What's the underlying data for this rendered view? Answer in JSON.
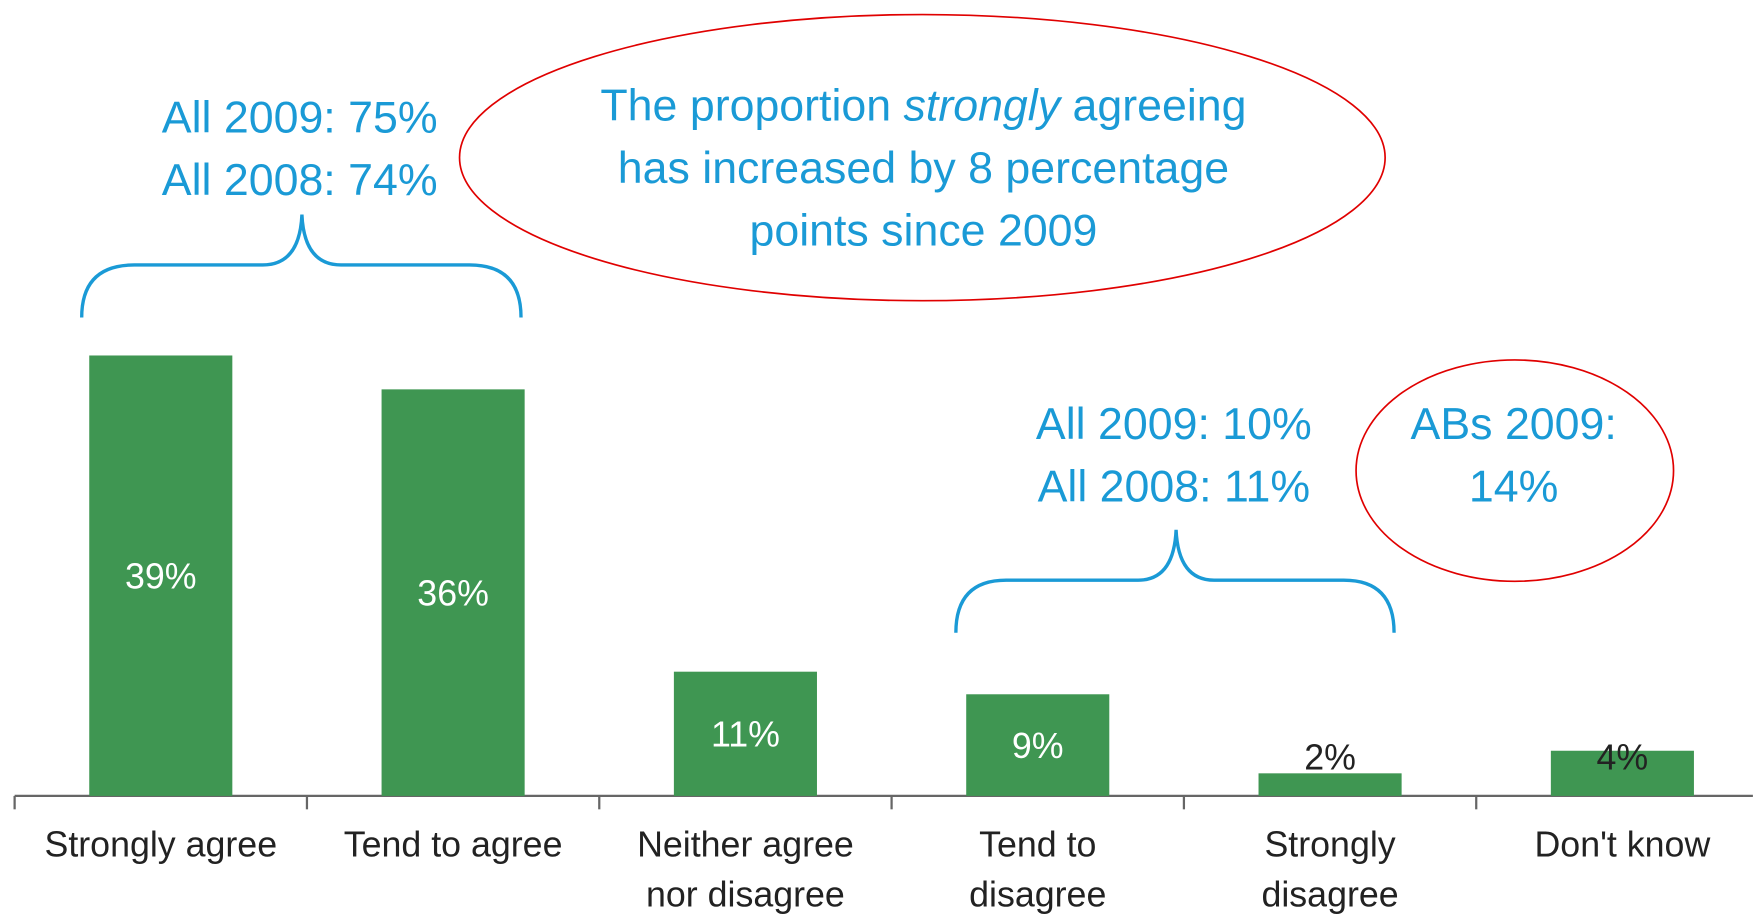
{
  "chart_data": {
    "type": "bar",
    "categories": [
      "Strongly agree",
      "Tend to agree",
      "Neither agree\nnor disagree",
      "Tend to\ndisagree",
      "Strongly\ndisagree",
      "Don't know"
    ],
    "values": [
      39,
      36,
      11,
      9,
      2,
      4
    ],
    "value_labels": [
      "39%",
      "36%",
      "11%",
      "9%",
      "2%",
      "4%"
    ],
    "color": "#3f9652",
    "annotations": {
      "agree_brace": [
        "All 2009: 75%",
        "All 2008: 74%"
      ],
      "disagree_brace": [
        "All 2009: 10%",
        "All 2008: 11%"
      ],
      "ellipse_note": {
        "line1": [
          "The proportion ",
          "strongly",
          " agreeing"
        ],
        "line2": "has increased by 8 percentage",
        "line3": "points since 2009"
      },
      "circle_note": [
        "ABs 2009:",
        "14%"
      ]
    }
  }
}
